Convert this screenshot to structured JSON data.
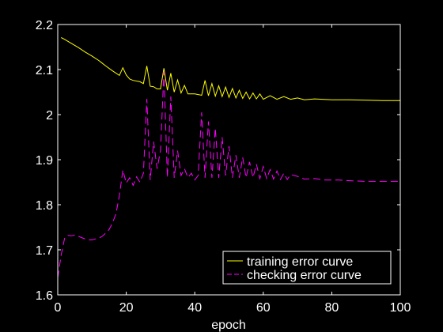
{
  "chart_data": {
    "type": "line",
    "xlabel": "epoch",
    "ylabel": "",
    "title": "",
    "xlim": [
      0,
      100
    ],
    "ylim": [
      1.6,
      2.2
    ],
    "xticks": [
      0,
      20,
      40,
      60,
      80,
      100
    ],
    "xtick_labels": [
      "0",
      "20",
      "40",
      "60",
      "80",
      "100"
    ],
    "yticks": [
      1.6,
      1.7,
      1.8,
      1.9,
      2.0,
      2.1,
      2.2
    ],
    "ytick_labels": [
      "1.6",
      "1.7",
      "1.8",
      "1.9",
      "2",
      "2.1",
      "2.2"
    ],
    "grid": false,
    "legend_position": "bottom-right",
    "background": "#000000",
    "axis_color": "#ffffff",
    "series": [
      {
        "name": "training error curve",
        "color": "#ffff00",
        "dash": "solid",
        "x": [
          1,
          2,
          4,
          6,
          8,
          10,
          12,
          14,
          16,
          18,
          19,
          20,
          21,
          22,
          24,
          25,
          26,
          27,
          28,
          29,
          30,
          31,
          32,
          33,
          34,
          35,
          36,
          37,
          38,
          40,
          42,
          43,
          44,
          45,
          46,
          47,
          48,
          49,
          50,
          51,
          52,
          53,
          54,
          55,
          56,
          57,
          58,
          59,
          60,
          62,
          64,
          66,
          68,
          70,
          72,
          75,
          80,
          85,
          90,
          95,
          100
        ],
        "y": [
          2.171,
          2.167,
          2.158,
          2.149,
          2.139,
          2.13,
          2.12,
          2.108,
          2.097,
          2.087,
          2.104,
          2.088,
          2.079,
          2.076,
          2.073,
          2.069,
          2.108,
          2.063,
          2.062,
          2.057,
          2.057,
          2.103,
          2.054,
          2.092,
          2.05,
          2.077,
          2.048,
          2.065,
          2.046,
          2.046,
          2.043,
          2.076,
          2.042,
          2.069,
          2.041,
          2.064,
          2.04,
          2.061,
          2.038,
          2.058,
          2.037,
          2.054,
          2.036,
          2.05,
          2.035,
          2.048,
          2.035,
          2.046,
          2.034,
          2.042,
          2.034,
          2.04,
          2.034,
          2.037,
          2.033,
          2.035,
          2.033,
          2.033,
          2.032,
          2.031,
          2.031
        ]
      },
      {
        "name": "checking error curve",
        "color": "#ff00ff",
        "dash": "dashed",
        "x": [
          0,
          1,
          2,
          3,
          4,
          5,
          6,
          7,
          8,
          9,
          10,
          11,
          12,
          13,
          14,
          15,
          16,
          17,
          18,
          19,
          20,
          21,
          22,
          23,
          24,
          25,
          26,
          27,
          28,
          29,
          30,
          31,
          32,
          33,
          34,
          35,
          36,
          37,
          38,
          39,
          40,
          41,
          42,
          43,
          44,
          45,
          46,
          47,
          48,
          49,
          50,
          51,
          52,
          53,
          54,
          55,
          56,
          57,
          58,
          59,
          60,
          61,
          62,
          63,
          64,
          65,
          66,
          67,
          68,
          70,
          72,
          75,
          78,
          82,
          86,
          90,
          95,
          100
        ],
        "y": [
          1.638,
          1.688,
          1.726,
          1.732,
          1.731,
          1.733,
          1.73,
          1.727,
          1.724,
          1.722,
          1.722,
          1.724,
          1.726,
          1.73,
          1.737,
          1.745,
          1.76,
          1.78,
          1.82,
          1.877,
          1.848,
          1.86,
          1.843,
          1.862,
          1.85,
          1.87,
          2.035,
          1.855,
          1.94,
          1.88,
          1.92,
          2.095,
          1.86,
          2.04,
          1.86,
          1.92,
          1.865,
          1.88,
          1.86,
          1.87,
          1.855,
          1.865,
          2.005,
          1.86,
          1.985,
          1.86,
          1.97,
          1.86,
          1.95,
          1.865,
          1.93,
          1.86,
          1.91,
          1.86,
          1.905,
          1.86,
          1.895,
          1.86,
          1.89,
          1.858,
          1.885,
          1.858,
          1.878,
          1.857,
          1.875,
          1.856,
          1.87,
          1.856,
          1.867,
          1.863,
          1.857,
          1.858,
          1.855,
          1.855,
          1.853,
          1.852,
          1.852,
          1.852
        ]
      }
    ]
  }
}
